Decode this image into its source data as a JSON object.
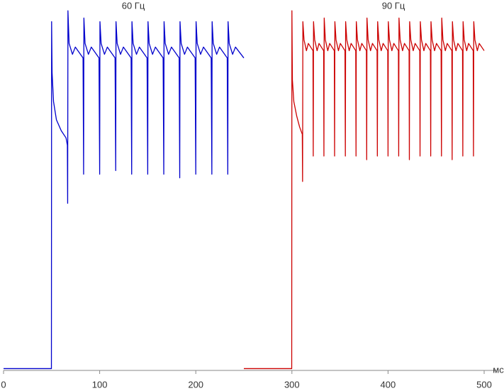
{
  "chart_data": {
    "type": "line",
    "x_label": "мс",
    "xlim": [
      0,
      500
    ],
    "xticks": [
      0,
      100,
      200,
      300,
      400,
      500
    ],
    "ylim": [
      0,
      100
    ],
    "series": [
      {
        "name": "60 Гц",
        "color": "#0000cc",
        "x": [
          0,
          49.8,
          50,
          50.5,
          52,
          55,
          60,
          65,
          66.4,
          66.7,
          67,
          68.2,
          71.7,
          74.7,
          82.7,
          83.3,
          83.6,
          84.8,
          88.3,
          91.3,
          99.3,
          100,
          100.3,
          101.5,
          105,
          108,
          116,
          116.7,
          117,
          118.2,
          121.7,
          124.7,
          132.7,
          133.3,
          133.6,
          134.8,
          138.3,
          141.3,
          149.3,
          150,
          150.3,
          151.5,
          155,
          158,
          166,
          166.7,
          167,
          168.2,
          171.7,
          174.7,
          182.7,
          183.3,
          183.6,
          184.8,
          188.3,
          191.3,
          199.3,
          200,
          200.3,
          201.5,
          205,
          208,
          216,
          216.7,
          217,
          218.2,
          221.7,
          224.7,
          232.7,
          233.3,
          233.6,
          234.8,
          238.3,
          241.3,
          250
        ],
        "values": [
          0.5,
          0.5,
          96,
          82,
          74,
          69,
          66,
          64,
          62,
          46,
          99,
          90,
          87,
          89,
          86,
          54,
          97,
          90,
          87,
          89,
          86,
          54,
          96,
          90,
          87,
          89,
          86,
          55,
          96,
          90,
          87,
          89,
          86,
          54,
          96,
          90,
          87,
          89,
          86,
          54,
          96,
          90,
          87,
          89,
          86,
          54,
          96,
          90,
          87,
          89,
          86,
          53,
          96,
          90,
          87,
          89,
          86,
          54,
          96,
          90,
          87,
          89,
          86,
          54,
          96,
          90,
          87,
          89,
          86,
          54,
          96,
          90,
          87,
          89,
          86
        ]
      },
      {
        "name": "90 Гц",
        "color": "#cc0000",
        "x": [
          250,
          299.8,
          300,
          300.5,
          302,
          305,
          308,
          310.8,
          311.1,
          311.4,
          312.6,
          315.1,
          317.1,
          321.9,
          322.2,
          322.5,
          323.7,
          326.2,
          328.2,
          333,
          333.3,
          333.6,
          334.8,
          337.3,
          339.3,
          344.1,
          344.4,
          344.7,
          345.9,
          348.4,
          350.4,
          355.2,
          355.6,
          355.9,
          357.1,
          359.6,
          361.6,
          366.4,
          366.7,
          367,
          368.2,
          370.7,
          372.7,
          377.5,
          377.8,
          378.1,
          379.3,
          381.8,
          383.8,
          388.6,
          388.9,
          389.2,
          390.4,
          392.9,
          394.9,
          399.7,
          400,
          400.3,
          401.5,
          404,
          406,
          410.8,
          411.1,
          411.4,
          412.6,
          415.1,
          417.1,
          421.9,
          422.2,
          422.5,
          423.7,
          426.2,
          428.2,
          433,
          433.3,
          433.6,
          434.8,
          437.3,
          439.3,
          444.1,
          444.4,
          444.7,
          445.9,
          448.4,
          450.4,
          455.2,
          455.6,
          455.9,
          457.1,
          459.6,
          461.6,
          466.4,
          466.7,
          467,
          468.2,
          470.7,
          472.7,
          477.5,
          477.8,
          478.1,
          479.3,
          481.8,
          483.8,
          488.6,
          488.9,
          489.2,
          490.4,
          492.9,
          494.9,
          500
        ],
        "values": [
          0.5,
          0.5,
          99,
          80,
          74,
          70,
          67,
          65,
          52,
          96,
          91,
          88,
          90,
          88,
          59,
          96,
          91,
          88,
          90,
          88,
          59,
          97,
          91,
          88,
          90,
          88,
          59,
          96,
          91,
          88,
          90,
          88,
          59,
          96,
          91,
          88,
          90,
          88,
          59,
          96,
          91,
          88,
          90,
          88,
          58,
          97,
          91,
          88,
          90,
          88,
          59,
          96,
          91,
          88,
          90,
          88,
          59,
          96,
          91,
          88,
          90,
          88,
          59,
          97,
          91,
          88,
          90,
          88,
          58,
          96,
          91,
          88,
          90,
          88,
          59,
          96,
          91,
          88,
          90,
          88,
          59,
          96,
          91,
          88,
          90,
          88,
          59,
          97,
          91,
          88,
          90,
          88,
          58,
          96,
          91,
          88,
          90,
          88,
          59,
          96,
          91,
          88,
          90,
          88,
          59,
          96,
          91,
          88,
          90,
          88
        ]
      }
    ]
  }
}
